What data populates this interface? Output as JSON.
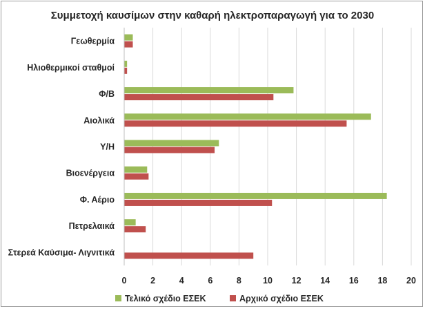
{
  "chart_data": {
    "type": "bar",
    "orientation": "horizontal",
    "title": "Συμμετοχή καυσίμων στην καθαρή ηλεκτροπαραγωγή για το 2030",
    "xlabel": "",
    "ylabel": "",
    "categories": [
      "Γεωθερμία",
      "Ηλιοθερμικοί σταθμοί",
      "Φ/Β",
      "Αιολικά",
      "Υ/Η",
      "Βιοενέργεια",
      "Φ. Αέριο",
      "Πετρελαικά",
      "Στερεά Καύσιμα- Λιγνιτικά"
    ],
    "series": [
      {
        "name": "Τελικό σχέδιο ΕΣΕΚ",
        "color": "#9BBB59",
        "values": [
          0.6,
          0.2,
          11.8,
          17.2,
          6.6,
          1.6,
          18.3,
          0.8,
          0.0
        ]
      },
      {
        "name": "Αρχικό σχέδιο ΕΣΕΚ",
        "color": "#C0504D",
        "values": [
          0.6,
          0.2,
          10.4,
          15.5,
          6.3,
          1.7,
          10.3,
          1.5,
          9.0
        ]
      }
    ],
    "xlim": [
      0,
      20
    ],
    "xticks": [
      "0",
      "2",
      "4",
      "6",
      "8",
      "10",
      "12",
      "14",
      "16",
      "18",
      "20"
    ],
    "grid": "vertical",
    "legend_position": "bottom"
  }
}
